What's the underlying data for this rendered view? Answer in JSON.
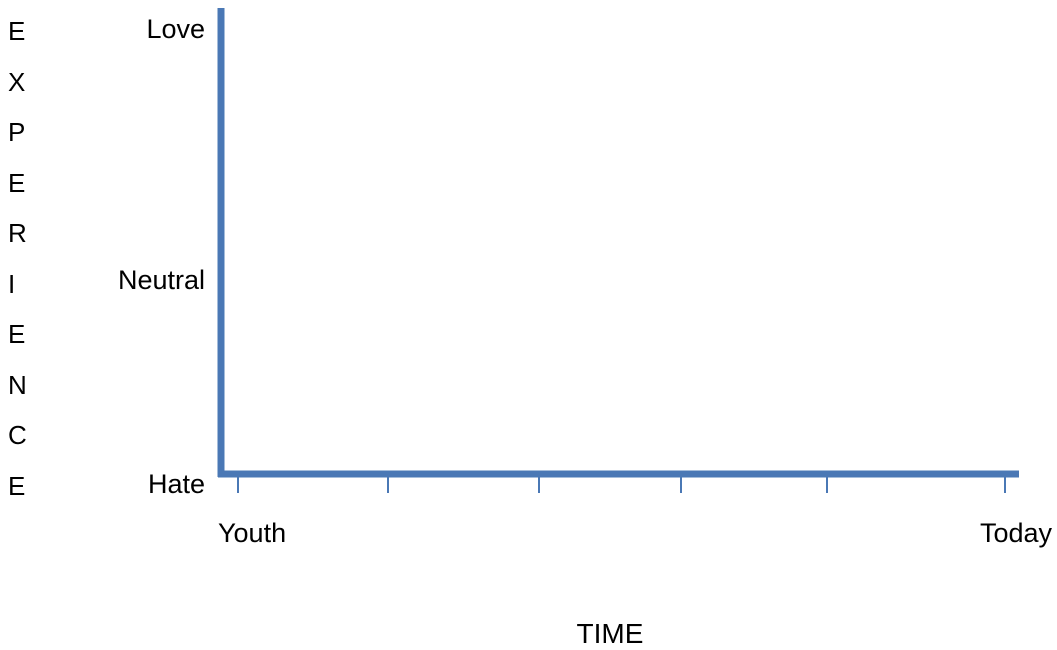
{
  "chart_data": {
    "type": "line",
    "title": "",
    "xlabel": "TIME",
    "ylabel": "EXPERIENCE",
    "x_tick_labels": [
      "Youth",
      "Today"
    ],
    "x_tick_count": 6,
    "y_tick_labels": [
      "Hate",
      "Neutral",
      "Love"
    ],
    "series": [],
    "grid": false,
    "legend": "none",
    "axis_color": "#4a78b5"
  }
}
